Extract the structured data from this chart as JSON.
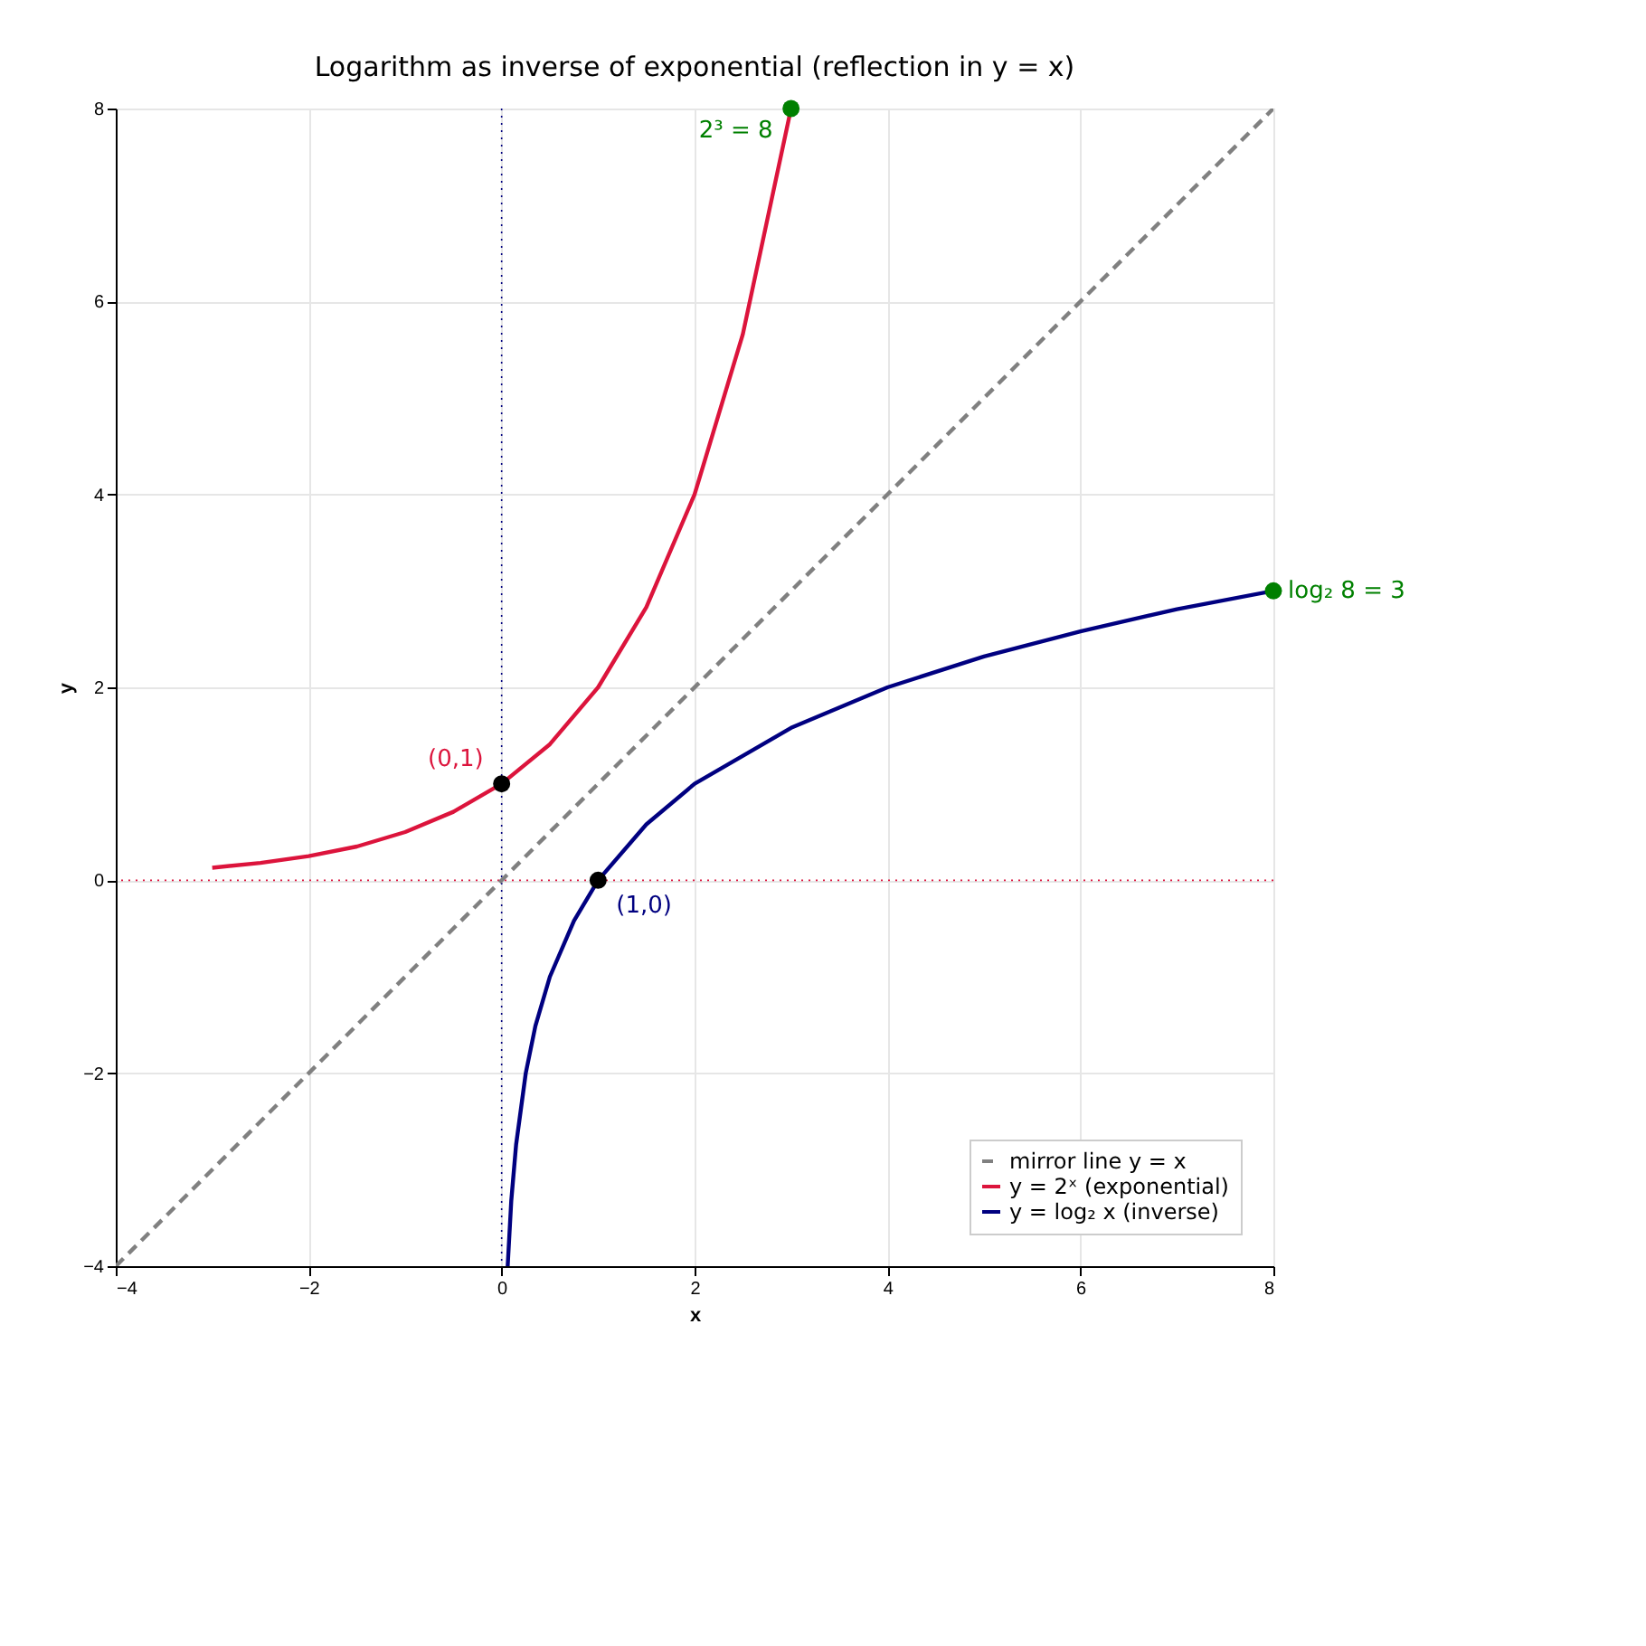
{
  "chart_data": {
    "type": "line",
    "title": "Logarithm as inverse of exponential (reflection in y = x)",
    "xlabel": "x",
    "ylabel": "y",
    "xlim": [
      -4,
      8
    ],
    "ylim": [
      -4,
      8
    ],
    "xticks": [
      -4,
      -2,
      0,
      2,
      4,
      6,
      8
    ],
    "yticks": [
      -4,
      -2,
      0,
      2,
      4,
      6,
      8
    ],
    "grid": true,
    "legend": "bottom right",
    "series": [
      {
        "name": "mirror line y = x",
        "line_style": "dashed",
        "color": "#808080",
        "x": [
          -4,
          8
        ],
        "values": [
          -4,
          8
        ]
      },
      {
        "name": "y = 2ˣ (exponential)",
        "line_style": "solid",
        "color": "#dc143c",
        "x": [
          -3,
          -2.5,
          -2,
          -1.5,
          -1,
          -0.5,
          0,
          0.5,
          1,
          1.5,
          2,
          2.5,
          3
        ],
        "values": [
          0.13,
          0.18,
          0.25,
          0.35,
          0.5,
          0.71,
          1,
          1.41,
          2,
          2.83,
          4,
          5.66,
          8
        ]
      },
      {
        "name": "y = log₂ x (inverse)",
        "line_style": "solid",
        "color": "#000080",
        "x": [
          0.0625,
          0.1,
          0.15,
          0.25,
          0.35,
          0.5,
          0.75,
          1,
          1.5,
          2,
          3,
          4,
          5,
          6,
          7,
          8
        ],
        "values": [
          -4,
          -3.32,
          -2.74,
          -2,
          -1.51,
          -1,
          -0.42,
          0,
          0.58,
          1,
          1.58,
          2,
          2.32,
          2.58,
          2.81,
          3
        ]
      },
      {
        "type": "scatter",
        "marker": "circle",
        "color": "#000000",
        "x": [
          0,
          1
        ],
        "values": [
          1,
          0
        ]
      },
      {
        "type": "scatter",
        "marker": "circle",
        "color": "#008000",
        "x": [
          3,
          8
        ],
        "values": [
          8,
          3
        ]
      }
    ],
    "ref_lines": [
      {
        "axis": "x",
        "value": 0,
        "color": "#000080",
        "line_style": "dotted"
      },
      {
        "axis": "y",
        "value": 0,
        "color": "#dc143c",
        "line_style": "dotted"
      }
    ],
    "annotations": [
      {
        "text": "(0,1)",
        "x": 0,
        "y": 1
      },
      {
        "text": "(1,0)",
        "x": 1,
        "y": 0
      },
      {
        "text": "2³ = 8",
        "x": 3,
        "y": 8
      },
      {
        "text": "log₂ 8 = 3",
        "x": 8,
        "y": 3
      }
    ]
  }
}
